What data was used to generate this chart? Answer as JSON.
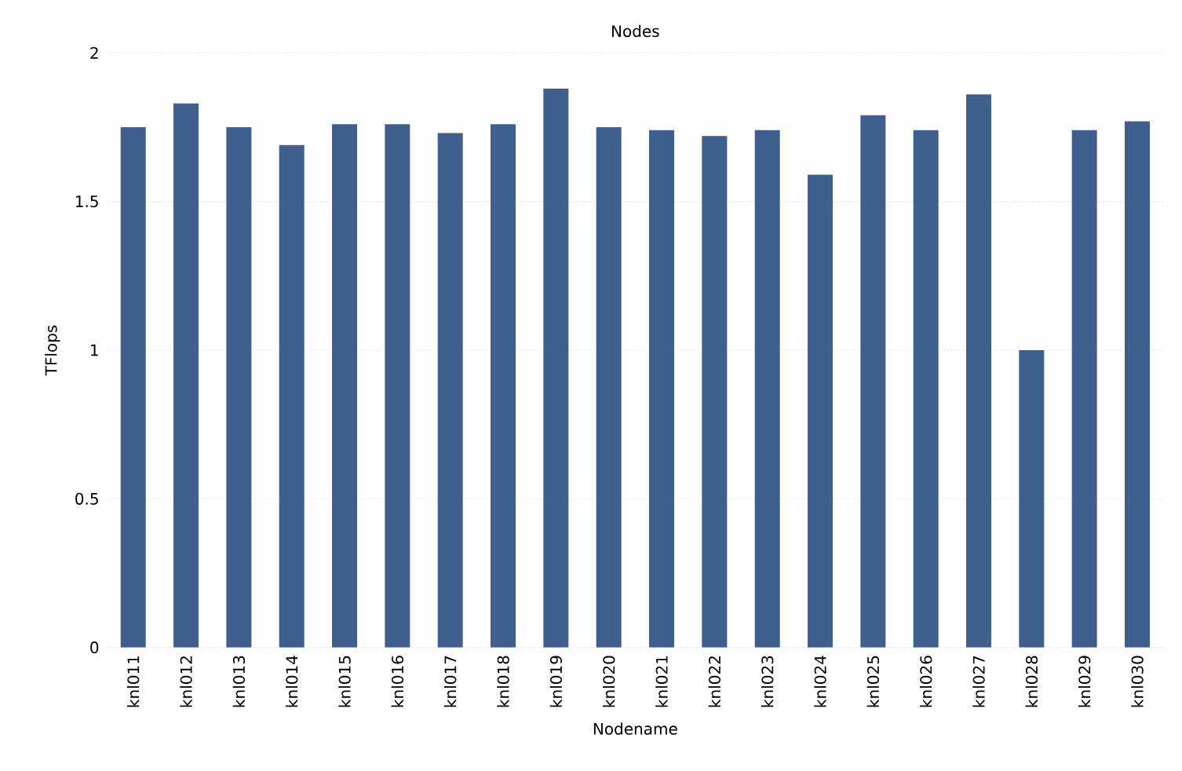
{
  "chart_data": {
    "type": "bar",
    "title": "Nodes",
    "xlabel": "Nodename",
    "ylabel": "TFlops",
    "categories": [
      "knl011",
      "knl012",
      "knl013",
      "knl014",
      "knl015",
      "knl016",
      "knl017",
      "knl018",
      "knl019",
      "knl020",
      "knl021",
      "knl022",
      "knl023",
      "knl024",
      "knl025",
      "knl026",
      "knl027",
      "knl028",
      "knl029",
      "knl030"
    ],
    "values": [
      1.75,
      1.83,
      1.75,
      1.69,
      1.76,
      1.76,
      1.73,
      1.76,
      1.88,
      1.75,
      1.74,
      1.72,
      1.74,
      1.59,
      1.79,
      1.74,
      1.86,
      1.0,
      1.74,
      1.77
    ],
    "color": "#3f5f8f",
    "ylim": [
      0,
      2
    ],
    "yticks": [
      0,
      0.5,
      1,
      1.5,
      2
    ],
    "grid": "y"
  }
}
